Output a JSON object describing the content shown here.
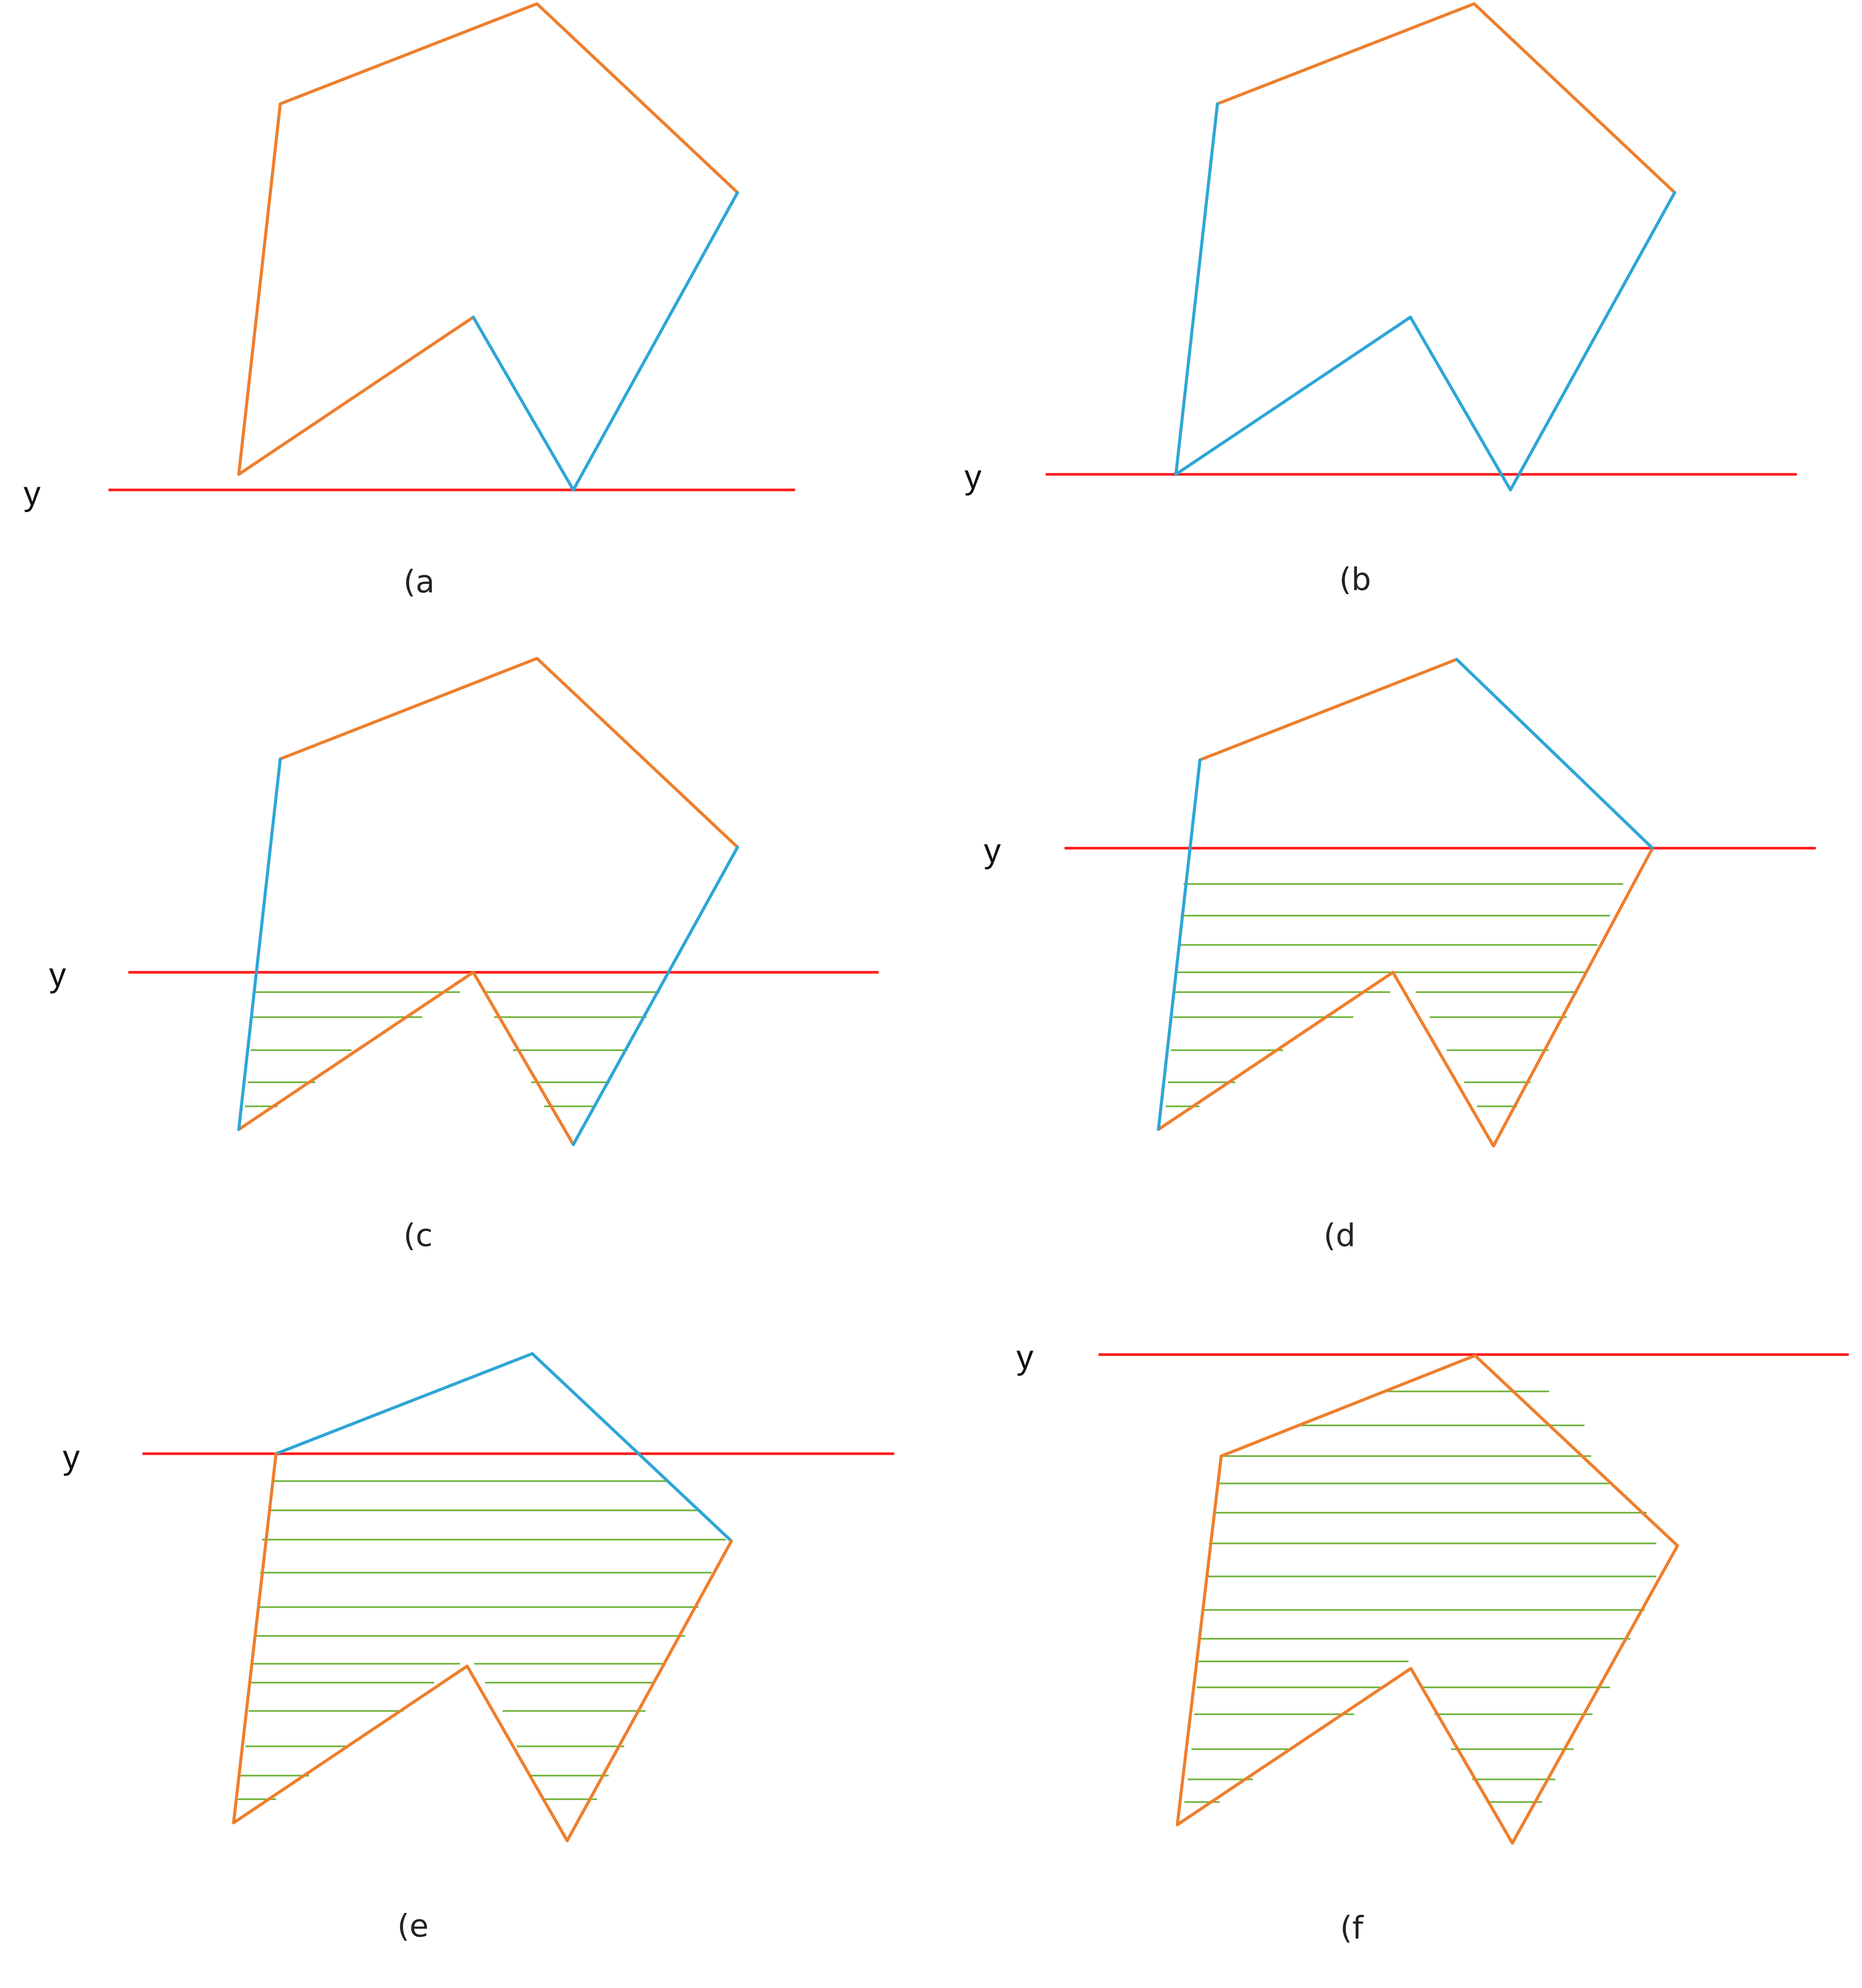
{
  "panels": [
    {
      "id": "a",
      "caption": "(a",
      "scanline_label": "y"
    },
    {
      "id": "b",
      "caption": "(b",
      "scanline_label": "y"
    },
    {
      "id": "c",
      "caption": "(c",
      "scanline_label": "y"
    },
    {
      "id": "d",
      "caption": "(d",
      "scanline_label": "y"
    },
    {
      "id": "e",
      "caption": "(e",
      "scanline_label": "y"
    },
    {
      "id": "f",
      "caption": "(f",
      "scanline_label": "y"
    }
  ],
  "colors": {
    "active_edge": "#2ea6d6",
    "polygon_edge": "#ee7f2d",
    "scan_line": "#ff1a1a",
    "filled_span": "#6fb33a"
  }
}
